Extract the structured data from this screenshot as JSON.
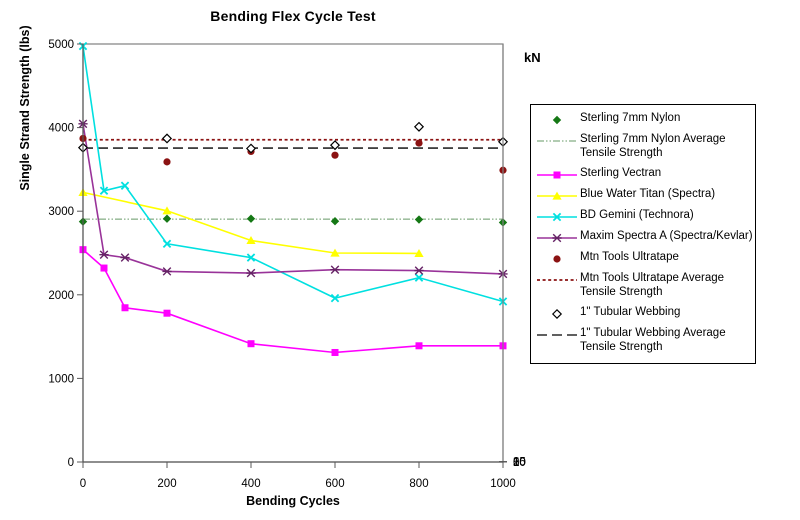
{
  "title": "Bending Flex Cycle Test",
  "axes": {
    "y_left": {
      "label": "Single Strand Strength (lbs)",
      "ticks": [
        0,
        1000,
        2000,
        3000,
        4000,
        5000
      ]
    },
    "y_right": {
      "label": "kN",
      "ticks": [
        0,
        5,
        10,
        15,
        20
      ]
    },
    "x": {
      "label": "Bending Cycles",
      "ticks": [
        0,
        200,
        400,
        600,
        800,
        1000
      ]
    }
  },
  "chart_data": {
    "type": "line",
    "title": "Bending Flex Cycle Test",
    "xlabel": "Bending Cycles",
    "ylabel": "Single Strand Strength (lbs)",
    "ylabel_secondary": "kN",
    "xlim": [
      0,
      1000
    ],
    "ylim": [
      0,
      5000
    ],
    "ylim_secondary_kN": [
      0,
      20
    ],
    "kN_per_lb": 0.0044482,
    "grid": false,
    "legend_position": "right",
    "series": [
      {
        "name": "Sterling 7mm Nylon",
        "marker": "diamond",
        "color": "#157815",
        "line": false,
        "x": [
          0,
          200,
          400,
          600,
          800,
          1000
        ],
        "y": [
          2875,
          2910,
          2910,
          2880,
          2900,
          2865
        ]
      },
      {
        "name": "Sterling 7mm Nylon Average Tensile Strength",
        "type": "hline",
        "value": 2905,
        "color": "#669966",
        "line_style": "dash-dot-dot"
      },
      {
        "name": "Sterling Vectran",
        "marker": "square",
        "color": "#FF00FF",
        "line": true,
        "x": [
          0,
          50,
          100,
          200,
          400,
          600,
          800,
          1000
        ],
        "y": [
          2540,
          2320,
          1845,
          1780,
          1415,
          1310,
          1390,
          1390
        ]
      },
      {
        "name": "Blue Water Titan (Spectra)",
        "marker": "triangle",
        "color": "#FFFF00",
        "line": true,
        "x": [
          0,
          200,
          400,
          600,
          800
        ],
        "y": [
          3225,
          3005,
          2650,
          2500,
          2495
        ]
      },
      {
        "name": "BD Gemini (Technora)",
        "marker": "x",
        "color": "#00E0E0",
        "line": true,
        "x": [
          0,
          50,
          100,
          200,
          400,
          600,
          800,
          1000
        ],
        "y": [
          4975,
          3245,
          3305,
          2610,
          2445,
          1960,
          2205,
          1920
        ]
      },
      {
        "name": "Maxim Spectra A (Spectra/Kevlar)",
        "marker": "asterisk",
        "color": "#993399",
        "marker_color": "#662266",
        "line": true,
        "x": [
          0,
          50,
          100,
          200,
          400,
          600,
          800,
          1000
        ],
        "y": [
          4045,
          2480,
          2445,
          2280,
          2260,
          2300,
          2290,
          2250
        ]
      },
      {
        "name": "Mtn Tools Ultratape",
        "marker": "circle",
        "color": "#8B1212",
        "line": false,
        "x": [
          0,
          200,
          400,
          600,
          800,
          1000
        ],
        "y": [
          3870,
          3590,
          3715,
          3670,
          3815,
          3490
        ]
      },
      {
        "name": "Mtn Tools Ultratape Average Tensile Strength",
        "type": "hline",
        "value": 3855,
        "color": "#8B1212",
        "line_style": "dotted"
      },
      {
        "name": "1\" Tubular Webbing",
        "marker": "open-diamond",
        "color": "#000000",
        "marker_fill": "#FFFFFF",
        "line": false,
        "x": [
          0,
          200,
          400,
          600,
          800,
          1000
        ],
        "y": [
          3760,
          3870,
          3750,
          3790,
          4010,
          3830
        ]
      },
      {
        "name": "1\" Tubular Webbing Average Tensile Strength",
        "type": "hline",
        "value": 3755,
        "color": "#000000",
        "line_style": "dashed"
      }
    ]
  },
  "colors": {
    "frame": "#808080",
    "axis": "#595959",
    "text": "#000000",
    "background": "#FFFFFF"
  }
}
